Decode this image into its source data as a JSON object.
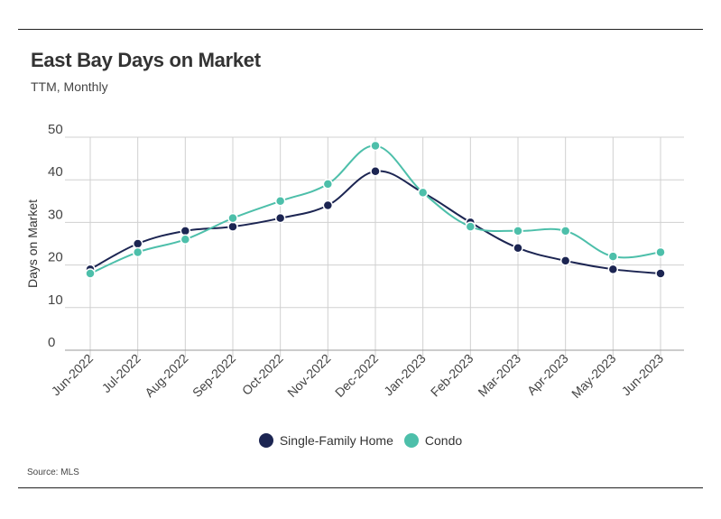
{
  "title": "East Bay Days on Market",
  "subtitle": "TTM, Monthly",
  "source": "Source:  MLS",
  "chart_data": {
    "type": "line",
    "title": "East Bay Days on Market",
    "subtitle": "TTM, Monthly",
    "xlabel": "",
    "ylabel": "Days on Market",
    "ylim": [
      0,
      50
    ],
    "yticks": [
      0,
      10,
      20,
      30,
      40,
      50
    ],
    "grid": true,
    "legend_position": "bottom",
    "categories": [
      "Jun-2022",
      "Jul-2022",
      "Aug-2022",
      "Sep-2022",
      "Oct-2022",
      "Nov-2022",
      "Dec-2022",
      "Jan-2023",
      "Feb-2023",
      "Mar-2023",
      "Apr-2023",
      "May-2023",
      "Jun-2023"
    ],
    "series": [
      {
        "name": "Single-Family Home",
        "color": "#1c2552",
        "values": [
          19,
          25,
          28,
          29,
          31,
          34,
          42,
          37,
          30,
          24,
          21,
          19,
          18
        ]
      },
      {
        "name": "Condo",
        "color": "#4dbfaa",
        "values": [
          18,
          23,
          26,
          31,
          35,
          39,
          48,
          37,
          29,
          28,
          28,
          22,
          23
        ]
      }
    ]
  }
}
